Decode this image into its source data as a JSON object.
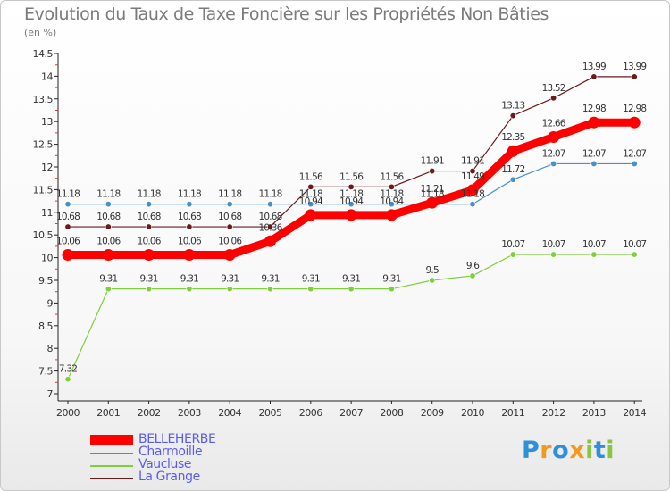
{
  "title": "Evolution du Taux de Taxe Foncière sur les Propriétés Non Bâties",
  "unit": "(en %)",
  "chart_data": {
    "type": "line",
    "x": [
      "2000",
      "2001",
      "2002",
      "2003",
      "2004",
      "2005",
      "2006",
      "2007",
      "2008",
      "2009",
      "2010",
      "2011",
      "2012",
      "2013",
      "2014"
    ],
    "ylim": [
      7,
      14.5
    ],
    "yticks": [
      "7",
      "7.5",
      "8",
      "8.5",
      "9",
      "9.5",
      "10",
      "10.5",
      "11",
      "11.5",
      "12",
      "12.5",
      "13",
      "13.5",
      "14",
      "14.5"
    ],
    "grid": false,
    "legend_position": "bottom-left",
    "series": [
      {
        "name": "BELLEHERBE",
        "color": "#ff0000",
        "values": [
          10.06,
          10.06,
          10.06,
          10.06,
          10.06,
          10.36,
          10.94,
          10.94,
          10.94,
          11.21,
          11.49,
          12.35,
          12.66,
          12.98,
          12.98
        ],
        "labels": [
          "10.06",
          "10.06",
          "10.06",
          "10.06",
          "10.06",
          "10.36",
          "10.94",
          "10.94",
          "10.94",
          "11.21",
          "11.49",
          "12.35",
          "12.66",
          "12.98",
          "12.98"
        ]
      },
      {
        "name": "Charmoille",
        "color": "#4a90c8",
        "values": [
          11.18,
          11.18,
          11.18,
          11.18,
          11.18,
          11.18,
          11.18,
          11.18,
          11.18,
          11.18,
          11.18,
          11.72,
          12.07,
          12.07,
          12.07
        ],
        "labels": [
          "11.18",
          "11.18",
          "11.18",
          "11.18",
          "11.18",
          "11.18",
          "11.18",
          "11.18",
          "11.18",
          "11.18",
          "11.18",
          "11.72",
          "12.07",
          "12.07",
          "12.07"
        ]
      },
      {
        "name": "Vaucluse",
        "color": "#7ed03b",
        "values": [
          7.32,
          9.31,
          9.31,
          9.31,
          9.31,
          9.31,
          9.31,
          9.31,
          9.31,
          9.5,
          9.6,
          10.07,
          10.07,
          10.07,
          10.07
        ],
        "labels": [
          "7.32",
          "9.31",
          "9.31",
          "9.31",
          "9.31",
          "9.31",
          "9.31",
          "9.31",
          "9.31",
          "9.5",
          "9.6",
          "10.07",
          "10.07",
          "10.07",
          "10.07"
        ]
      },
      {
        "name": "La Grange",
        "color": "#6b1a1a",
        "values": [
          10.68,
          10.68,
          10.68,
          10.68,
          10.68,
          10.68,
          11.56,
          11.56,
          11.56,
          11.91,
          11.91,
          13.13,
          13.52,
          13.99,
          13.99
        ],
        "labels": [
          "10.68",
          "10.68",
          "10.68",
          "10.68",
          "10.68",
          "10.68",
          "11.56",
          "11.56",
          "11.56",
          "11.91",
          "11.91",
          "13.13",
          "13.52",
          "13.99",
          "13.99"
        ]
      }
    ]
  },
  "legend": [
    {
      "label": "BELLEHERBE",
      "color": "#5b5bf0"
    },
    {
      "label": "Charmoille",
      "color": "#5b5bf0"
    },
    {
      "label": "Vaucluse",
      "color": "#5b5bf0"
    },
    {
      "label": "La Grange",
      "color": "#5b5bf0"
    }
  ],
  "logo": {
    "letters": [
      "P",
      "r",
      "o",
      "x",
      "i",
      "t",
      "i"
    ],
    "colors": [
      "#2f8fd8",
      "#f29a1e",
      "#2f8fd8",
      "#f29a1e",
      "#8bc43f",
      "#2f8fd8",
      "#8bc43f"
    ]
  }
}
